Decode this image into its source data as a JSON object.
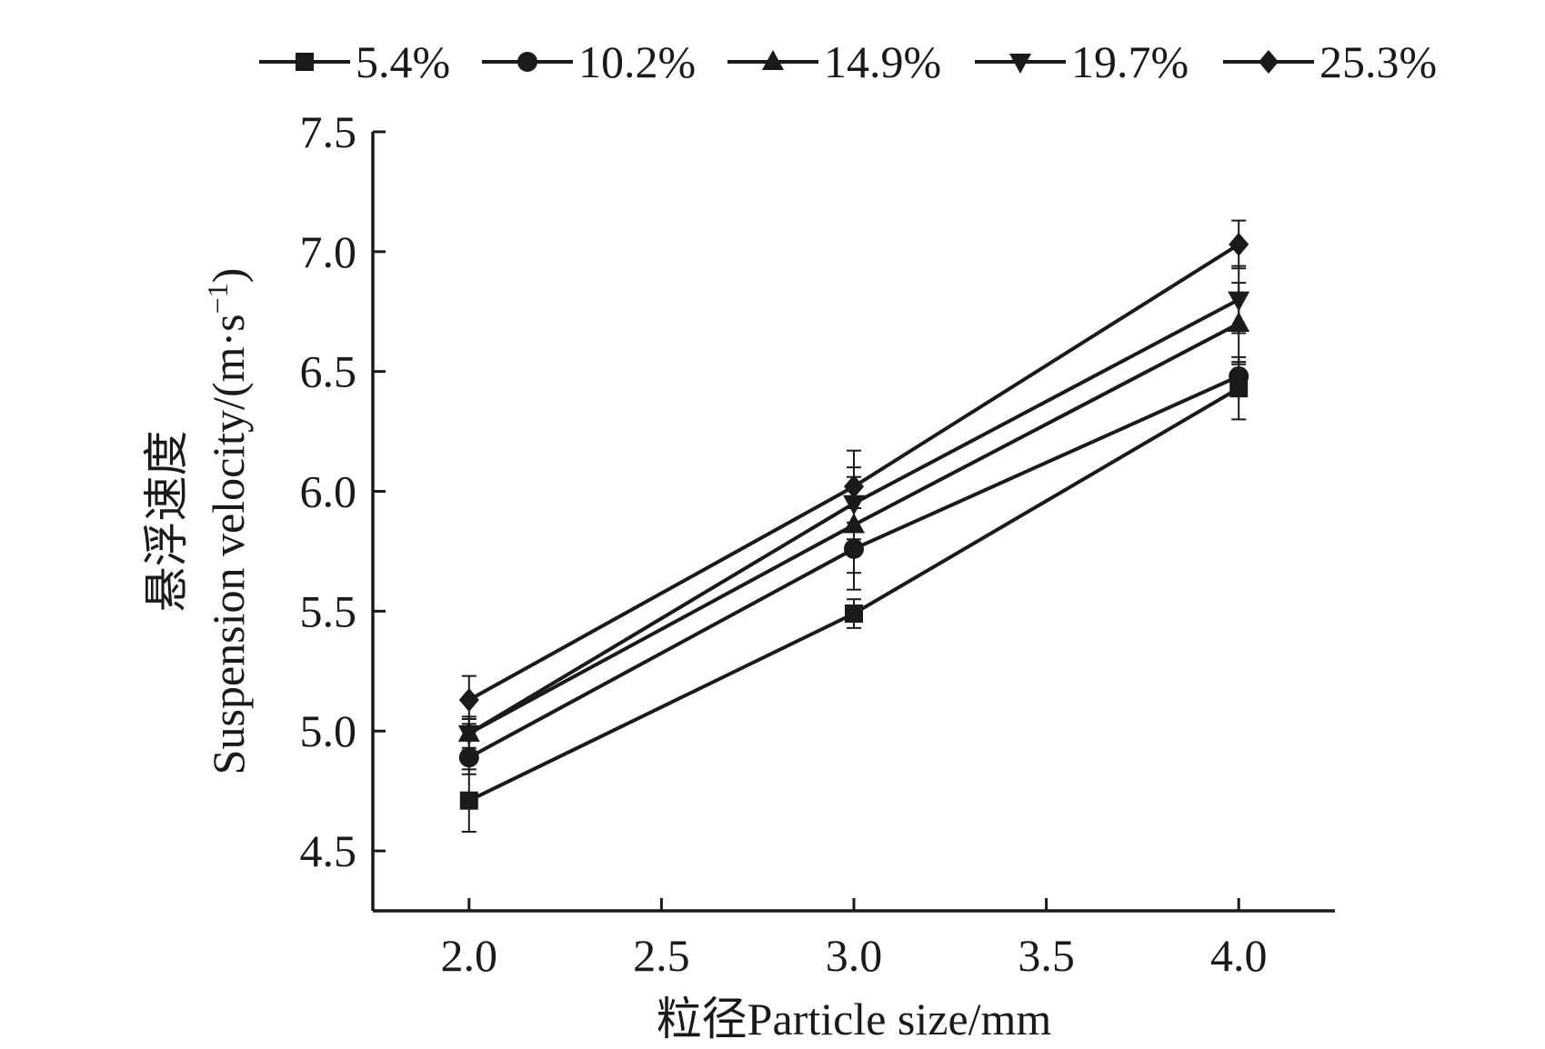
{
  "chart_data": {
    "type": "line",
    "title": "",
    "xlabel": "粒径Particle size/mm",
    "ylabel_cn": "悬浮速度",
    "ylabel_en": "Suspension velocity/(m·s",
    "ylabel_sup": "−1",
    "ylabel_close": ")",
    "x": [
      2.0,
      3.0,
      4.0
    ],
    "xlim": [
      1.75,
      4.25
    ],
    "ylim": [
      4.25,
      7.5
    ],
    "xticks": [
      2.0,
      2.5,
      3.0,
      3.5,
      4.0
    ],
    "xtick_labels": [
      "2.0",
      "2.5",
      "3.0",
      "3.5",
      "4.0"
    ],
    "yticks": [
      4.5,
      5.0,
      5.5,
      6.0,
      6.5,
      7.0,
      7.5
    ],
    "ytick_labels": [
      "4.5",
      "5.0",
      "5.5",
      "6.0",
      "6.5",
      "7.0",
      "7.5"
    ],
    "legend_position": "top",
    "line_color": "#1a1a1a",
    "series": [
      {
        "name": "5.4%",
        "marker": "square",
        "values": [
          4.71,
          5.49,
          6.43
        ],
        "errors": [
          0.13,
          0.06,
          0.13
        ]
      },
      {
        "name": "10.2%",
        "marker": "circle",
        "values": [
          4.89,
          5.76,
          6.48
        ],
        "errors": [
          0.07,
          0.17,
          0.06
        ]
      },
      {
        "name": "14.9%",
        "marker": "triangle-up",
        "values": [
          4.99,
          5.86,
          6.7
        ],
        "errors": [
          0.07,
          0.2,
          0.17
        ]
      },
      {
        "name": "19.7%",
        "marker": "triangle-down",
        "values": [
          4.99,
          5.95,
          6.8
        ],
        "errors": [
          0.06,
          0.15,
          0.14
        ]
      },
      {
        "name": "25.3%",
        "marker": "diamond",
        "values": [
          5.13,
          6.02,
          7.03
        ],
        "errors": [
          0.1,
          0.15,
          0.1
        ]
      }
    ]
  }
}
